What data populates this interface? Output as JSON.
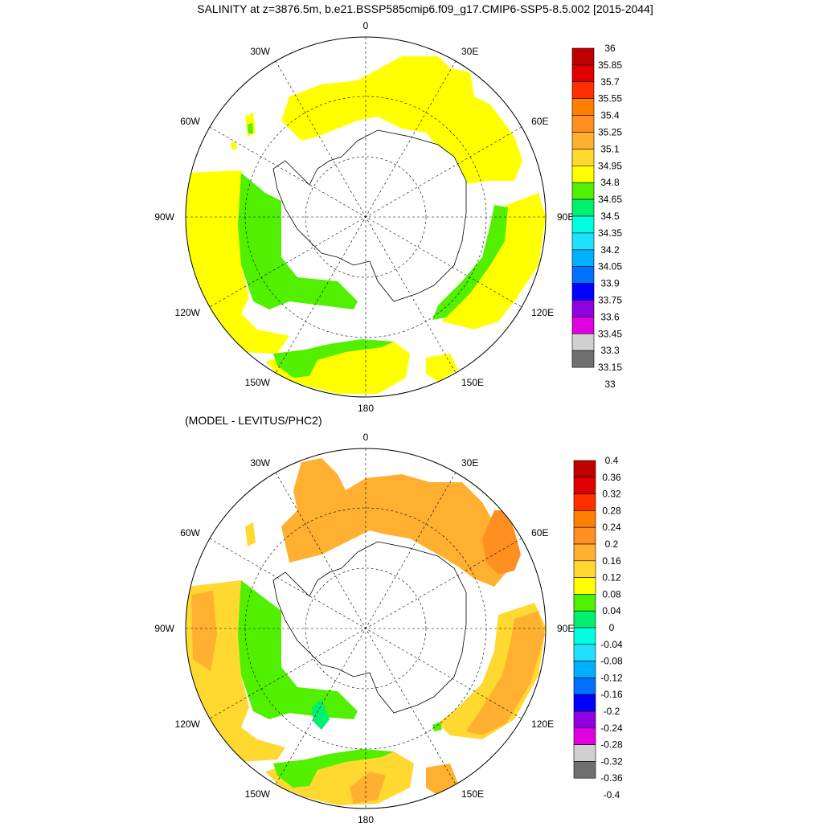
{
  "title": "SALINITY at z=3876.5m, b.e21.BSSP585cmip6.f09_g17.CMIP6-SSP5-8.5.002 [2015-2044]",
  "diff_title": "(MODEL - LEVITUS/PHC2)",
  "lon_labels": [
    "0",
    "30E",
    "60E",
    "90E",
    "120E",
    "150E",
    "180",
    "150W",
    "120W",
    "90W",
    "60W",
    "30W"
  ],
  "colors": {
    "land": "#ffffff",
    "coast": "#000000",
    "grid": "#000000",
    "scale": [
      "#707070",
      "#d0d0d0",
      "#e000e0",
      "#9000e0",
      "#0000ff",
      "#0070ff",
      "#00b0ff",
      "#20e0ff",
      "#00ffe0",
      "#00f070",
      "#50f000",
      "#ffff00",
      "#ffd830",
      "#ffb030",
      "#ff9020",
      "#ff8000",
      "#ff3000",
      "#e00000",
      "#c00000"
    ]
  },
  "colorbar_top": {
    "labels": [
      "36",
      "35.85",
      "35.7",
      "35.55",
      "35.4",
      "35.25",
      "35.1",
      "34.95",
      "34.8",
      "34.65",
      "34.5",
      "34.35",
      "34.2",
      "34.05",
      "33.9",
      "33.75",
      "33.6",
      "33.45",
      "33.3",
      "33.15",
      "33"
    ]
  },
  "colorbar_bottom": {
    "labels": [
      "0.4",
      "0.36",
      "0.32",
      "0.28",
      "0.24",
      "0.2",
      "0.16",
      "0.12",
      "0.08",
      "0.04",
      "0",
      "-0.04",
      "-0.08",
      "-0.12",
      "-0.16",
      "-0.2",
      "-0.24",
      "-0.28",
      "-0.32",
      "-0.36",
      "-0.4"
    ]
  },
  "top_fields": {
    "yellow": "#ffff00",
    "green": "#50f000"
  },
  "bottom_fields": {
    "orange": "#ffb030",
    "dark_orange": "#ff9020",
    "yellow": "#ffd830",
    "green": "#50f000",
    "teal": "#00f070"
  }
}
